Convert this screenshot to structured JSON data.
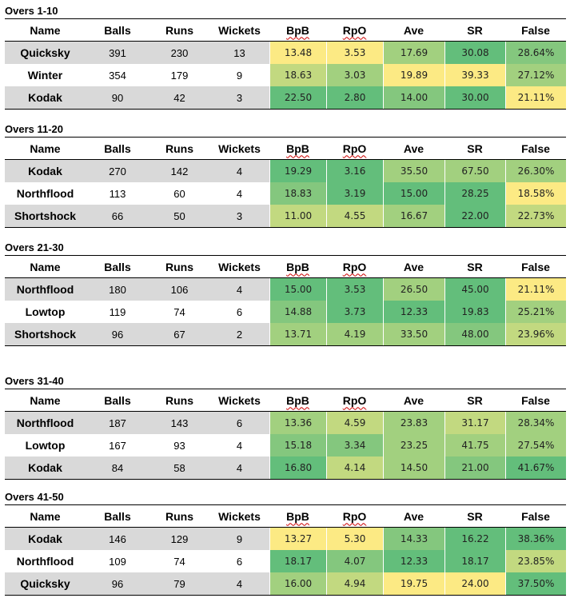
{
  "colors": {
    "grey": "#d9d9d9",
    "white": "#ffffff",
    "g1": "#63be7b",
    "g2": "#84c77e",
    "g3": "#a2d07f",
    "g4": "#c2d980",
    "y1": "#e2e282",
    "y0": "#fcea84"
  },
  "headers": [
    "Name",
    "Balls",
    "Runs",
    "Wickets",
    "BpB",
    "RpO",
    "Ave",
    "SR",
    "False"
  ],
  "sections": [
    {
      "title": "Overs 1-10",
      "rows": [
        {
          "name": "Quicksky",
          "balls": "391",
          "runs": "230",
          "wickets": "13",
          "bpb": "13.48",
          "rpo": "3.53",
          "ave": "17.69",
          "sr": "30.08",
          "false": "28.64%"
        },
        {
          "name": "Winter",
          "balls": "354",
          "runs": "179",
          "wickets": "9",
          "bpb": "18.63",
          "rpo": "3.03",
          "ave": "19.89",
          "sr": "39.33",
          "false": "27.12%"
        },
        {
          "name": "Kodak",
          "balls": "90",
          "runs": "42",
          "wickets": "3",
          "bpb": "22.50",
          "rpo": "2.80",
          "ave": "14.00",
          "sr": "30.00",
          "false": "21.11%"
        }
      ]
    },
    {
      "title": "Overs 11-20",
      "rows": [
        {
          "name": "Kodak",
          "balls": "270",
          "runs": "142",
          "wickets": "4",
          "bpb": "19.29",
          "rpo": "3.16",
          "ave": "35.50",
          "sr": "67.50",
          "false": "26.30%"
        },
        {
          "name": "Northflood",
          "balls": "113",
          "runs": "60",
          "wickets": "4",
          "bpb": "18.83",
          "rpo": "3.19",
          "ave": "15.00",
          "sr": "28.25",
          "false": "18.58%"
        },
        {
          "name": "Shortshock",
          "balls": "66",
          "runs": "50",
          "wickets": "3",
          "bpb": "11.00",
          "rpo": "4.55",
          "ave": "16.67",
          "sr": "22.00",
          "false": "22.73%"
        }
      ]
    },
    {
      "title": "Overs 21-30",
      "rows": [
        {
          "name": "Northflood",
          "balls": "180",
          "runs": "106",
          "wickets": "4",
          "bpb": "15.00",
          "rpo": "3.53",
          "ave": "26.50",
          "sr": "45.00",
          "false": "21.11%"
        },
        {
          "name": "Lowtop",
          "balls": "119",
          "runs": "74",
          "wickets": "6",
          "bpb": "14.88",
          "rpo": "3.73",
          "ave": "12.33",
          "sr": "19.83",
          "false": "25.21%"
        },
        {
          "name": "Shortshock",
          "balls": "96",
          "runs": "67",
          "wickets": "2",
          "bpb": "13.71",
          "rpo": "4.19",
          "ave": "33.50",
          "sr": "48.00",
          "false": "23.96%"
        }
      ]
    },
    {
      "title": "Overs 31-40",
      "rows": [
        {
          "name": "Northflood",
          "balls": "187",
          "runs": "143",
          "wickets": "6",
          "bpb": "13.36",
          "rpo": "4.59",
          "ave": "23.83",
          "sr": "31.17",
          "false": "28.34%"
        },
        {
          "name": "Lowtop",
          "balls": "167",
          "runs": "93",
          "wickets": "4",
          "bpb": "15.18",
          "rpo": "3.34",
          "ave": "23.25",
          "sr": "41.75",
          "false": "27.54%"
        },
        {
          "name": "Kodak",
          "balls": "84",
          "runs": "58",
          "wickets": "4",
          "bpb": "16.80",
          "rpo": "4.14",
          "ave": "14.50",
          "sr": "21.00",
          "false": "41.67%"
        }
      ]
    },
    {
      "title": "Overs 41-50",
      "rows": [
        {
          "name": "Kodak",
          "balls": "146",
          "runs": "129",
          "wickets": "9",
          "bpb": "13.27",
          "rpo": "5.30",
          "ave": "14.33",
          "sr": "16.22",
          "false": "38.36%"
        },
        {
          "name": "Northflood",
          "balls": "109",
          "runs": "74",
          "wickets": "6",
          "bpb": "18.17",
          "rpo": "4.07",
          "ave": "12.33",
          "sr": "18.17",
          "false": "23.85%"
        },
        {
          "name": "Quicksky",
          "balls": "96",
          "runs": "79",
          "wickets": "4",
          "bpb": "16.00",
          "rpo": "4.94",
          "ave": "19.75",
          "sr": "24.00",
          "false": "37.50%"
        }
      ]
    }
  ],
  "cell_colors": [
    [
      [
        "y0",
        "y0",
        "g3",
        "g1",
        "g2"
      ],
      [
        "g4",
        "g3",
        "y0",
        "y0",
        "g3"
      ],
      [
        "g1",
        "g1",
        "g2",
        "g1",
        "y0"
      ]
    ],
    [
      [
        "g1",
        "g1",
        "g3",
        "g3",
        "g3"
      ],
      [
        "g2",
        "g1",
        "g1",
        "g1",
        "y0"
      ],
      [
        "g4",
        "g4",
        "g3",
        "g1",
        "g4"
      ]
    ],
    [
      [
        "g1",
        "g1",
        "g3",
        "g1",
        "y0"
      ],
      [
        "g2",
        "g1",
        "g1",
        "g1",
        "g3"
      ],
      [
        "g3",
        "g3",
        "g3",
        "g2",
        "g4"
      ]
    ],
    [
      [
        "g3",
        "g4",
        "g3",
        "g4",
        "g3"
      ],
      [
        "g2",
        "g2",
        "g3",
        "g3",
        "g3"
      ],
      [
        "g1",
        "g4",
        "g3",
        "g2",
        "g1"
      ]
    ],
    [
      [
        "y0",
        "y0",
        "g2",
        "g1",
        "g1"
      ],
      [
        "g1",
        "g2",
        "g1",
        "g1",
        "g4"
      ],
      [
        "g3",
        "g4",
        "y0",
        "y0",
        "g1"
      ]
    ]
  ]
}
